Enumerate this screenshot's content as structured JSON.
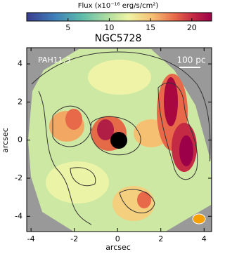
{
  "chart_data": {
    "type": "image",
    "title": "NGC5728",
    "colorbar_label": "Flux (x10⁻¹⁶ erg/s/cm²)",
    "clim": [
      0,
      22.4
    ],
    "cticks": [
      5,
      10,
      15,
      20
    ],
    "band_label": "PAH11.3",
    "scale_label": "100 pc",
    "xlabel": "arcsec",
    "ylabel": "arcsec",
    "xlim": [
      -4.2,
      4.35
    ],
    "ylim": [
      -4.8,
      4.85
    ],
    "xticks": [
      -4,
      -2,
      0,
      2,
      4
    ],
    "yticks": [
      -4,
      -2,
      0,
      2,
      4
    ]
  }
}
